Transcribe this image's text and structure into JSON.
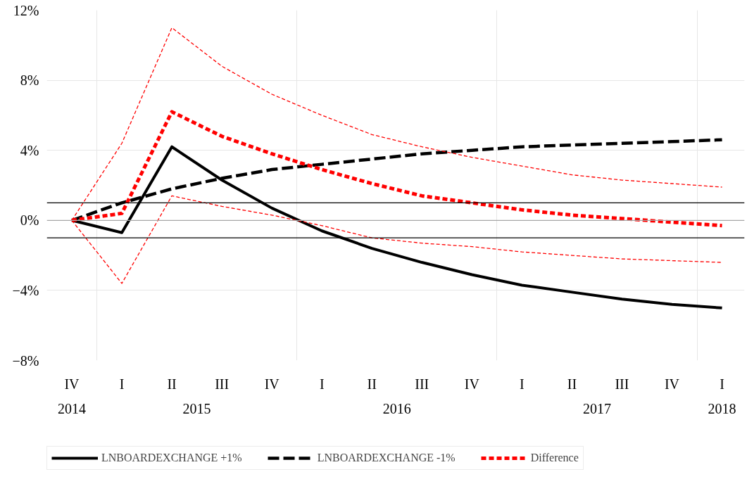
{
  "chart_data": {
    "type": "line",
    "categories": [
      "IV",
      "I",
      "II",
      "III",
      "IV",
      "I",
      "II",
      "III",
      "IV",
      "I",
      "II",
      "III",
      "IV",
      "I"
    ],
    "series": [
      {
        "name": "LNBOARDEXCHANGE +1%",
        "color": "#000000",
        "line_style": "solid",
        "values": [
          0,
          -0.7,
          4.2,
          2.3,
          0.7,
          -0.6,
          -1.6,
          -2.4,
          -3.1,
          -3.7,
          -4.1,
          -4.5,
          -4.8,
          -5.0
        ]
      },
      {
        "name": "LNBOARDEXCHANGE -1%",
        "color": "#000000",
        "line_style": "dashed",
        "values": [
          0,
          1.0,
          1.8,
          2.4,
          2.9,
          3.2,
          3.5,
          3.8,
          4.0,
          4.2,
          4.3,
          4.4,
          4.5,
          4.6
        ]
      },
      {
        "name": "Difference",
        "color": "#ff0000",
        "line_style": "dotted",
        "values": [
          0,
          0.4,
          6.2,
          4.8,
          3.8,
          2.9,
          2.1,
          1.4,
          1.0,
          0.6,
          0.3,
          0.1,
          -0.1,
          -0.3
        ]
      },
      {
        "color": "#ff0000",
        "line_style": "dashed",
        "values": [
          0,
          4.4,
          11.0,
          8.8,
          7.2,
          6.0,
          4.9,
          4.2,
          3.6,
          3.1,
          2.6,
          2.3,
          2.1,
          1.9
        ]
      },
      {
        "color": "#ff0000",
        "line_style": "dashed",
        "values": [
          0,
          -3.6,
          1.4,
          0.8,
          0.3,
          -0.3,
          -1.0,
          -1.3,
          -1.5,
          -1.8,
          -2.0,
          -2.2,
          -2.3,
          -2.4
        ]
      }
    ],
    "annotations": [
      "2014",
      "2015",
      "2016",
      "2017",
      "2018"
    ],
    "ylim": [
      -8,
      12
    ],
    "yticks": [
      {
        "value": -8,
        "label": "−8%"
      },
      {
        "value": -4,
        "label": "−4%"
      },
      {
        "value": 0,
        "label": "0%"
      },
      {
        "value": 4,
        "label": "4%"
      },
      {
        "value": 8,
        "label": "8%"
      },
      {
        "value": 12,
        "label": "12%"
      }
    ],
    "ref_lines": [
      {
        "axis": "y",
        "value": 1,
        "color": "#000000"
      },
      {
        "axis": "y",
        "value": -1,
        "color": "#000000"
      },
      {
        "axis": "y",
        "value": 0,
        "color": "#a6a6a6"
      }
    ],
    "grid": true,
    "legend": "bottom"
  }
}
